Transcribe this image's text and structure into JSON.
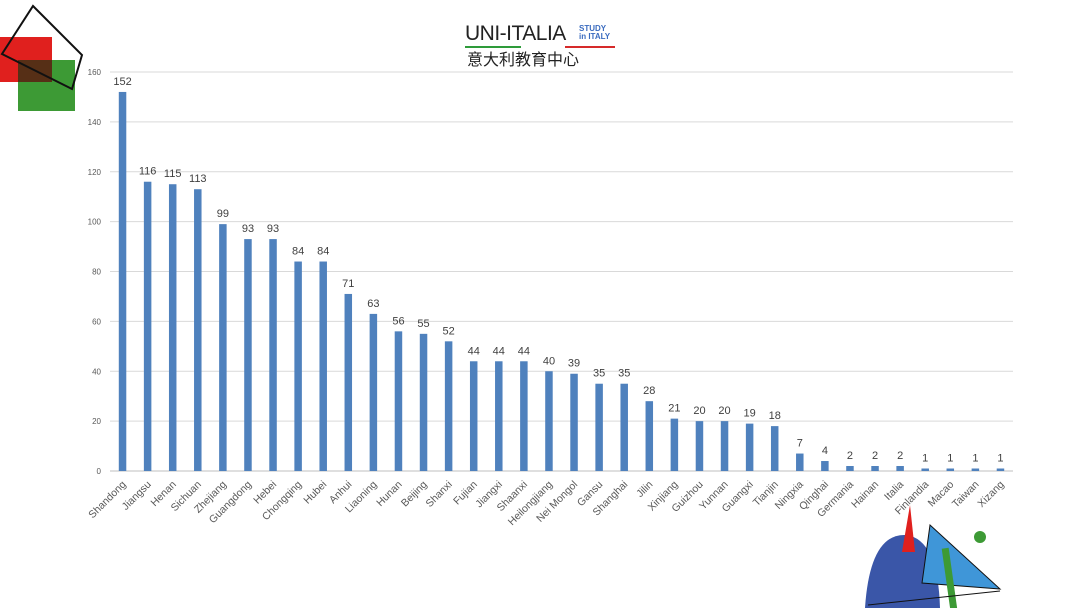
{
  "logo": {
    "brand": "UNI-ITALIA",
    "study_line1": "STUDY",
    "study_line2": "in ITALY",
    "subtitle": "意大利教育中心"
  },
  "colors": {
    "bar": "#4f81bd",
    "grid": "#d9d9d9",
    "axis_text": "#595959",
    "label_text": "#404040"
  },
  "chart_data": {
    "type": "bar",
    "title": "",
    "xlabel": "",
    "ylabel": "",
    "ylim": [
      0,
      160
    ],
    "yticks": [
      0,
      20,
      40,
      60,
      80,
      100,
      120,
      140,
      160
    ],
    "grid": true,
    "categories": [
      "Shandong",
      "Jiangsu",
      "Henan",
      "Sichuan",
      "Zhejiang",
      "Guangdong",
      "Hebei",
      "Chongqing",
      "Hubei",
      "Anhui",
      "Liaoning",
      "Hunan",
      "Beijing",
      "Shanxi",
      "Fujian",
      "Jiangxi",
      "Shaanxi",
      "Heilongjiang",
      "Nei Mongol",
      "Gansu",
      "Shanghai",
      "Jilin",
      "Xinjiang",
      "Guizhou",
      "Yunnan",
      "Guangxi",
      "Tianjin",
      "Ningxia",
      "Qinghai",
      "Germania",
      "Hainan",
      "Italia",
      "Finlandia",
      "Macao",
      "Taiwan",
      "Xizang"
    ],
    "values": [
      152,
      116,
      115,
      113,
      99,
      93,
      93,
      84,
      84,
      71,
      63,
      56,
      55,
      52,
      44,
      44,
      44,
      40,
      39,
      35,
      35,
      28,
      21,
      20,
      20,
      19,
      18,
      7,
      4,
      2,
      2,
      2,
      1,
      1,
      1,
      1
    ]
  }
}
